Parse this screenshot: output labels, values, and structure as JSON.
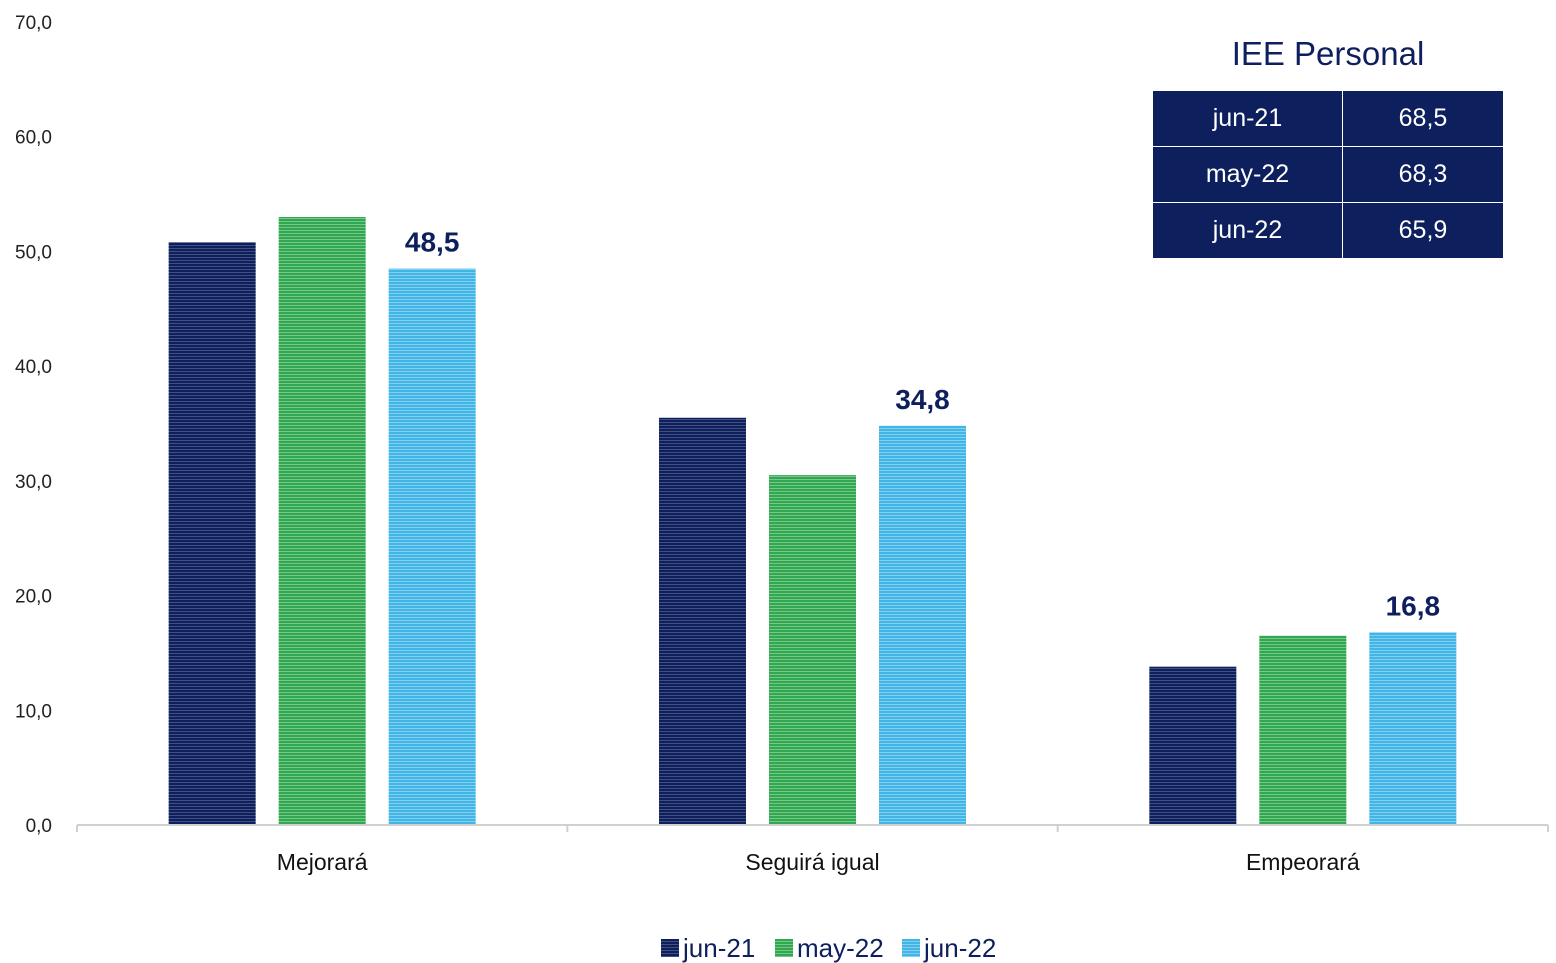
{
  "colors": {
    "jun21": "#0d1f5c",
    "may22": "#2fa84f",
    "jun22": "#41b6e6",
    "axis": "#d0d0d0"
  },
  "chart_data": {
    "type": "bar",
    "categories": [
      "Mejorará",
      "Seguirá igual",
      "Empeorará"
    ],
    "series": [
      {
        "name": "jun-21",
        "values": [
          50.8,
          35.5,
          13.8
        ]
      },
      {
        "name": "may-22",
        "values": [
          53.0,
          30.5,
          16.5
        ]
      },
      {
        "name": "jun-22",
        "values": [
          48.5,
          34.8,
          16.8
        ]
      }
    ],
    "data_labels": [
      "48,5",
      "34,8",
      "16,8"
    ],
    "y_ticks": [
      "0,0",
      "10,0",
      "20,0",
      "30,0",
      "40,0",
      "50,0",
      "60,0",
      "70,0"
    ],
    "ylim": [
      0,
      70
    ],
    "grid": false,
    "legend_position": "bottom"
  },
  "iee_table": {
    "title": "IEE Personal",
    "rows": [
      {
        "period": "jun-21",
        "value": "68,5"
      },
      {
        "period": "may-22",
        "value": "68,3"
      },
      {
        "period": "jun-22",
        "value": "65,9"
      }
    ]
  }
}
